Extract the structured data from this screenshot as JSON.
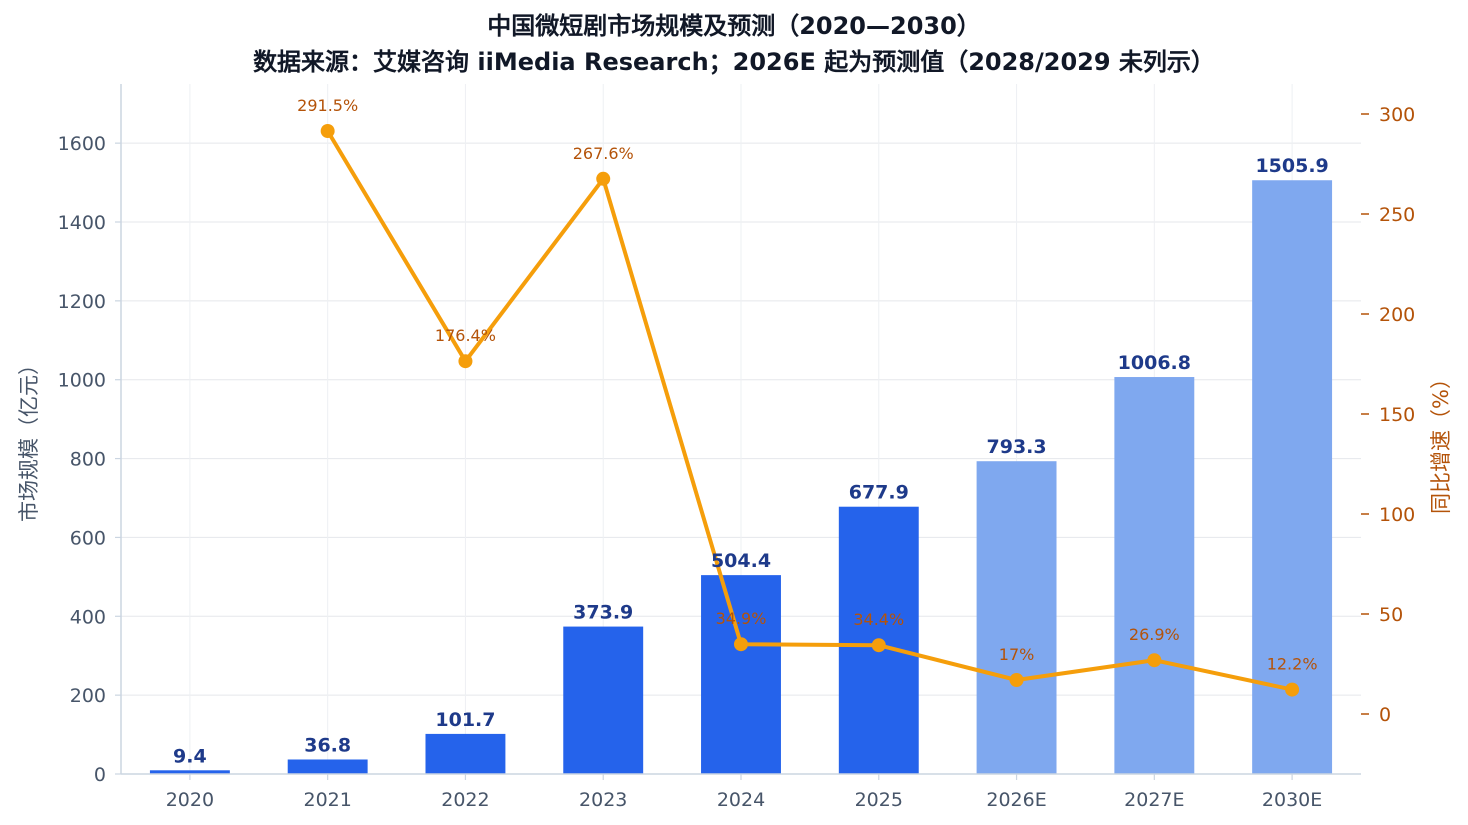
{
  "chart_data": {
    "type": "bar",
    "title_line1": "中国微短剧市场规模及预测（2020—2030）",
    "title_line2": "数据来源：艾媒咨询 iiMedia Research；2026E 起为预测值（2028/2029 未列示）",
    "ylabel": "市场规模（亿元）",
    "y2label": "同比增速（%）",
    "categories": [
      "2020",
      "2021",
      "2022",
      "2023",
      "2024",
      "2025",
      "2026E",
      "2027E",
      "2030E"
    ],
    "forecast_from_index": 6,
    "ylim": [
      0,
      1750
    ],
    "y_ticks": [
      0,
      200,
      400,
      600,
      800,
      1000,
      1200,
      1400,
      1600
    ],
    "y2lim": [
      -30,
      315
    ],
    "y2_ticks": [
      0,
      50,
      100,
      150,
      200,
      250,
      300
    ],
    "grid": true,
    "series": [
      {
        "kind": "bar",
        "values": [
          9.4,
          36.8,
          101.7,
          373.9,
          504.4,
          677.9,
          793.3,
          1006.8,
          1505.9
        ],
        "labels": [
          "9.4",
          "36.8",
          "101.7",
          "373.9",
          "504.4",
          "677.9",
          "793.3",
          "1006.8",
          "1505.9"
        ],
        "color": "#2563eb",
        "forecast_color": "#7fa8ef"
      },
      {
        "kind": "line",
        "axis": "right",
        "values": [
          null,
          291.5,
          176.4,
          267.6,
          34.9,
          34.4,
          17,
          26.9,
          12.2
        ],
        "labels": [
          "",
          "291.5%",
          "176.4%",
          "267.6%",
          "34.9%",
          "34.4%",
          "17%",
          "26.9%",
          "12.2%"
        ],
        "color": "#f59e0b"
      }
    ]
  }
}
